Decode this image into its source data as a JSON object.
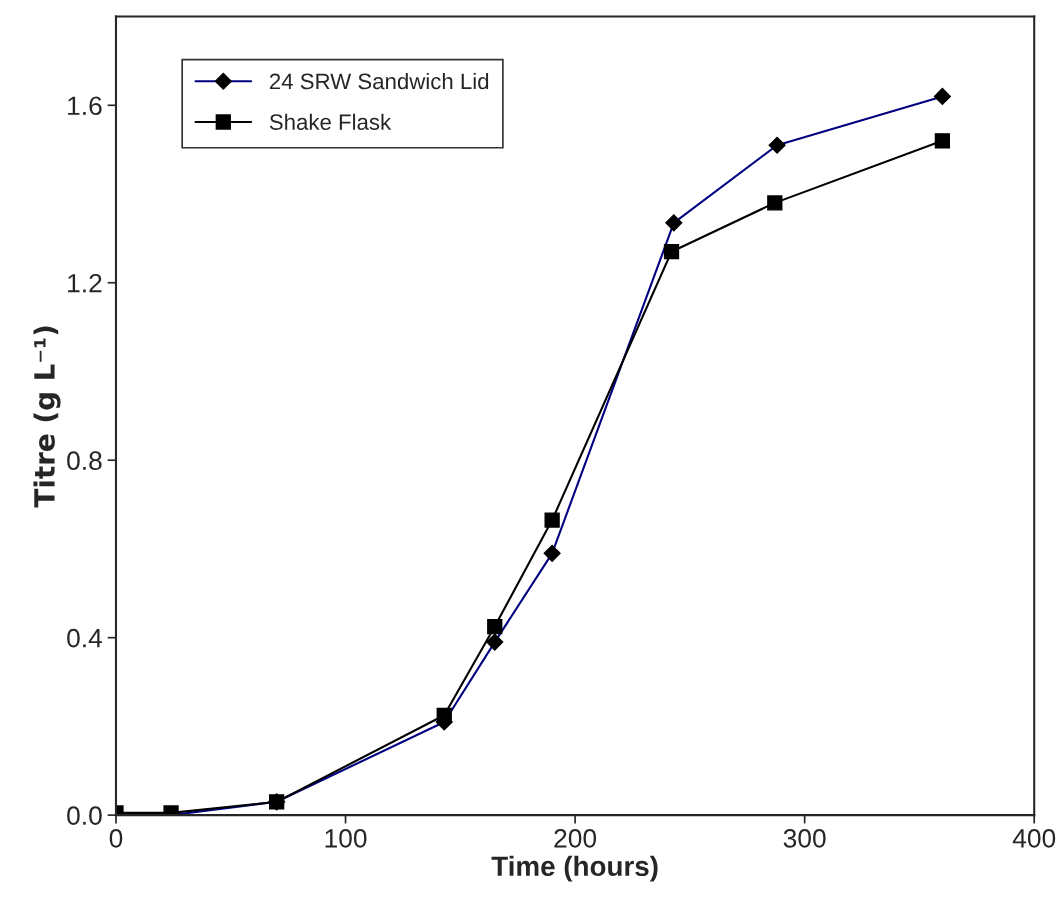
{
  "chart_data": {
    "type": "line",
    "xlabel": "Time (hours)",
    "ylabel": "Titre (g L⁻¹)",
    "xlim": [
      0,
      400
    ],
    "xticks": [
      0,
      100,
      200,
      300,
      400
    ],
    "ylim": [
      0,
      1.8
    ],
    "yticks": [
      {
        "value": 0,
        "label": "0.0"
      },
      {
        "value": 0.4,
        "label": "0.4"
      },
      {
        "value": 0.8,
        "label": "0.8"
      },
      {
        "value": 1.2,
        "label": "1.2"
      },
      {
        "value": 1.6,
        "label": "1.6"
      }
    ],
    "grid": false,
    "legend": "top left",
    "series": [
      {
        "name": "24 SRW Sandwich Lid",
        "color": "#000080",
        "marker": "diamond",
        "x": [
          0,
          24,
          70,
          143,
          165,
          190,
          243,
          288,
          360
        ],
        "values": [
          0,
          0,
          0.03,
          0.21,
          0.39,
          0.59,
          1.335,
          1.51,
          1.62
        ]
      },
      {
        "name": "Shake Flask",
        "color": "#000000",
        "marker": "square",
        "x": [
          0,
          24,
          70,
          143,
          165,
          190,
          242,
          287,
          360
        ],
        "values": [
          0.005,
          0.005,
          0.03,
          0.225,
          0.425,
          0.665,
          1.27,
          1.38,
          1.52
        ]
      }
    ]
  }
}
